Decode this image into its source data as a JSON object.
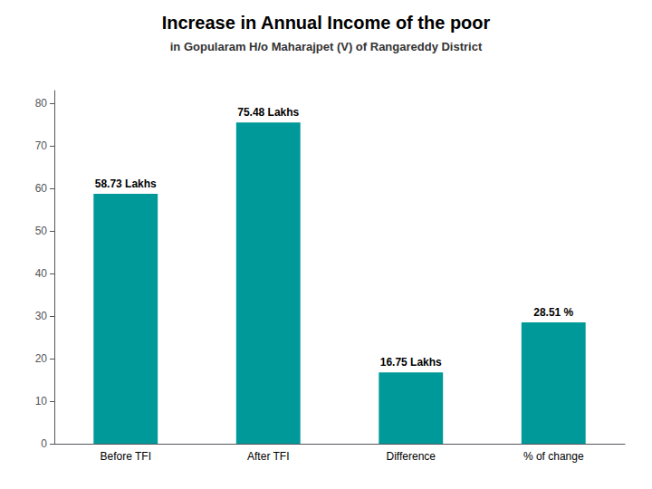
{
  "chart_data": {
    "type": "bar",
    "title": "Increase in Annual Income of the poor",
    "subtitle": "in Gopularam H/o Maharajpet (V) of Rangareddy District",
    "categories": [
      "Before TFI",
      "After TFI",
      "Difference",
      "% of change"
    ],
    "values": [
      58.73,
      75.48,
      16.75,
      28.51
    ],
    "value_labels": [
      "58.73 Lakhs",
      "75.48 Lakhs",
      "16.75 Lakhs",
      "28.51 %"
    ],
    "data_labels": true,
    "color": "#009999",
    "ylim": [
      0,
      83
    ],
    "yticks": [
      0,
      10,
      20,
      30,
      40,
      50,
      60,
      70,
      80
    ],
    "grid": false
  }
}
